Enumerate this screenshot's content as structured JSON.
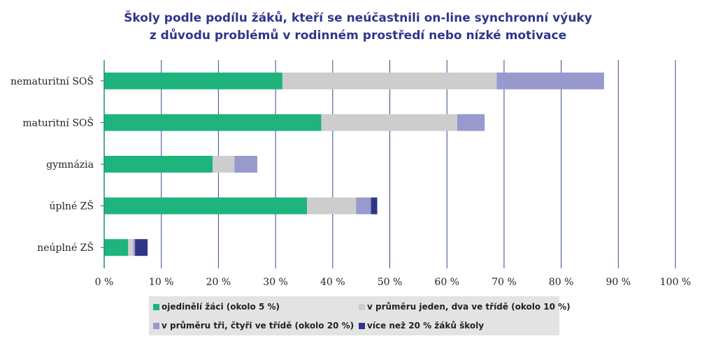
{
  "title": {
    "line1": "Školy podle podílu žáků, kteří se neúčastnili on-line synchronní výuky",
    "line2": "z důvodu problémů v rodinném prostředí nebo nízké motivace"
  },
  "chart_data": {
    "type": "bar",
    "orientation": "horizontal",
    "stacked": true,
    "title": "Školy podle podílu žáků, kteří se neúčastnili on-line synchronní výuky z důvodu problémů v rodinném prostředí nebo nízké motivace",
    "categories": [
      "nematuritní SOŠ",
      "maturitní SOŠ",
      "gymnázia",
      "úplné ZŠ",
      "neúplné ZŠ"
    ],
    "series": [
      {
        "name": "ojedinělí žáci (okolo 5 %)",
        "color": "#1fb37e",
        "values": [
          31.2,
          38.0,
          19.0,
          35.5,
          4.2
        ]
      },
      {
        "name": "v průměru jeden, dva ve třídě (okolo 10 %)",
        "color": "#cdcdcd",
        "values": [
          37.5,
          23.8,
          3.8,
          8.6,
          0.9
        ]
      },
      {
        "name": "v průměru tři, čtyři ve třídě (okolo 20 %)",
        "color": "#9899cc",
        "values": [
          18.8,
          4.8,
          4.0,
          2.6,
          0.3
        ]
      },
      {
        "name": "více než 20 % žáků školy",
        "color": "#2e3589",
        "values": [
          0,
          0,
          0,
          1.1,
          2.2
        ]
      }
    ],
    "xlim": [
      0,
      100
    ],
    "xticks": [
      "0 %",
      "10 %",
      "20 %",
      "30 %",
      "40 %",
      "50 %",
      "60 %",
      "70 %",
      "80 %",
      "90 %",
      "100 %"
    ],
    "grid": true,
    "grid_color": "#2f4a8a",
    "legend_position": "bottom"
  }
}
